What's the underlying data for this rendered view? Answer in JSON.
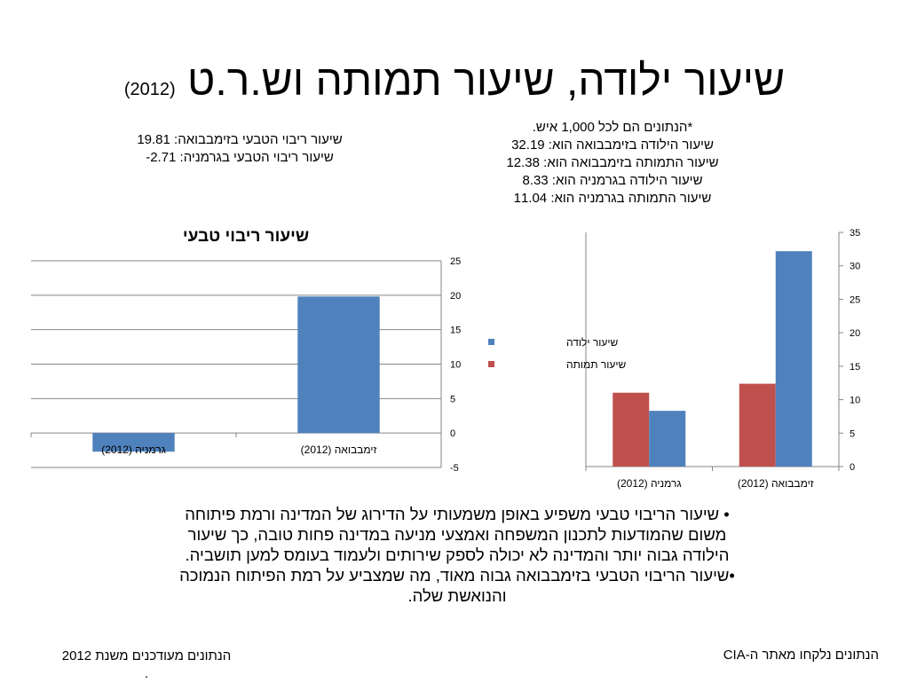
{
  "title": {
    "main": "שיעור ילודה, שיעור תמותה וש.ר.ט",
    "year": "(2012)"
  },
  "left_note": {
    "line1": "שיעור ריבוי הטבעי בזימבבואה: 19.81",
    "line2": "שיעור ריבוי הטבעי בגרמניה: 2.71-"
  },
  "right_note": {
    "line1": "*הנתונים הם לכל 1,000 איש.",
    "line2": "שיעור הילודה בזימבבואה הוא:  32.19",
    "line3": "שיעור התמותה בזימבבואה הוא: 12.38",
    "line4": "שיעור הילודה בגרמניה הוא:  8.33",
    "line5": "שיעור התמותה בגרמניה הוא: 11.04"
  },
  "chart_data": [
    {
      "type": "bar",
      "title": "שיעור ריבוי טבעי",
      "categories": [
        "גרמניה (2012)",
        "זימבבואה (2012)"
      ],
      "values": [
        -2.71,
        19.81
      ],
      "ylim": [
        -5,
        25
      ],
      "yticks": [
        -5,
        0,
        5,
        10,
        15,
        20,
        25
      ],
      "grid": true,
      "legend": "none",
      "color": "#4F81BD"
    },
    {
      "type": "bar",
      "title": "",
      "categories": [
        "גרמניה (2012)",
        "זימבבואה (2012)"
      ],
      "series": [
        {
          "name": "שיעור תמותה",
          "values": [
            11.04,
            12.38
          ],
          "color": "#C0504D"
        },
        {
          "name": "שיעור ילודה",
          "values": [
            8.33,
            32.19
          ],
          "color": "#4F81BD"
        }
      ],
      "legend_order": [
        "שיעור ילודה",
        "שיעור תמותה"
      ],
      "ylim": [
        0,
        35
      ],
      "yticks": [
        0,
        5,
        10,
        15,
        20,
        25,
        30,
        35
      ],
      "grid": false,
      "legend": "left"
    }
  ],
  "bullets": {
    "b1": "• שיעור הריבוי טבעי משפיע באופן משמעותי על הדירוג של המדינה ורמת פיתוחה משום שהמודעות לתכנון המשפחה ואמצעי מניעה במדינה פחות טובה, כך שיעור הילודה גבוה יותר והמדינה לא יכולה לספק שירותים ולעמוד בעומס למען תושביה.",
    "b2": "•שיעור הריבוי הטבעי בזימבבואה גבוה מאוד, מה שמצביע על רמת הפיתוח הנמוכה והנואשת שלה."
  },
  "footer": {
    "left": "הנתונים מעודכנים משנת  2012",
    "left_dot": ".",
    "right": "הנתונים נלקחו מאתר ה-CIA"
  }
}
